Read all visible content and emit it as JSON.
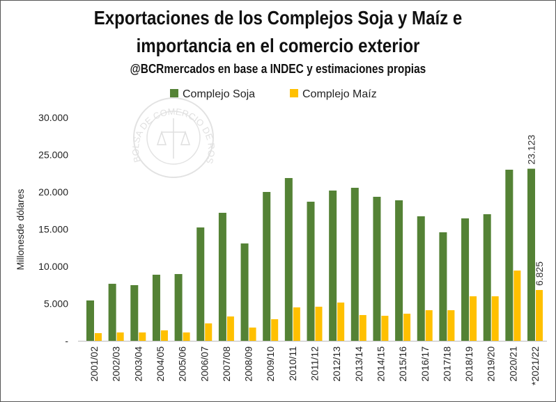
{
  "chart_data": {
    "type": "bar",
    "title": "Exportaciones de los Complejos Soja y Maíz e",
    "title_line2": "importancia en el comercio exterior",
    "subtitle": "@BCRmercados en base a INDEC y estimaciones propias",
    "xlabel": "",
    "ylabel": "Millonesde dólares",
    "ylim": [
      0,
      30000
    ],
    "yticks": [
      0,
      5000,
      10000,
      15000,
      20000,
      25000,
      30000
    ],
    "ytick_labels": [
      "-",
      "5.000",
      "10.000",
      "15.000",
      "20.000",
      "25.000",
      "30.000"
    ],
    "grid": false,
    "legend_position": "top-center",
    "categories": [
      "2001/02",
      "2002/03",
      "2003/04",
      "2004/05",
      "2005/06",
      "2006/07",
      "2007/08",
      "2008/09",
      "2009/10",
      "2010/11",
      "2011/12",
      "2012/13",
      "2013/14",
      "2014/15",
      "2015/16",
      "2016/17",
      "2017/18",
      "2018/19",
      "2019/20",
      "2020/21",
      "*2021/22"
    ],
    "series": [
      {
        "name": "Complejo Soja",
        "color": "#548235",
        "values": [
          5420,
          7660,
          7480,
          8880,
          8970,
          15230,
          17200,
          13080,
          20000,
          21870,
          18690,
          20190,
          20560,
          19350,
          18880,
          16730,
          14580,
          16450,
          17010,
          22990,
          23123
        ]
      },
      {
        "name": "Complejo Maíz",
        "color": "#FFC000",
        "values": [
          1030,
          1120,
          1120,
          1400,
          1120,
          2340,
          3270,
          1780,
          2900,
          4490,
          4580,
          5140,
          3460,
          3360,
          3640,
          4110,
          4110,
          5980,
          5980,
          9440,
          6825
        ]
      }
    ],
    "data_labels": [
      {
        "series": 0,
        "index": 20,
        "text": "23.123"
      },
      {
        "series": 1,
        "index": 20,
        "text": "6.825"
      }
    ],
    "watermark": "BOLSA DE COMERCIO DE ROSARIO"
  }
}
